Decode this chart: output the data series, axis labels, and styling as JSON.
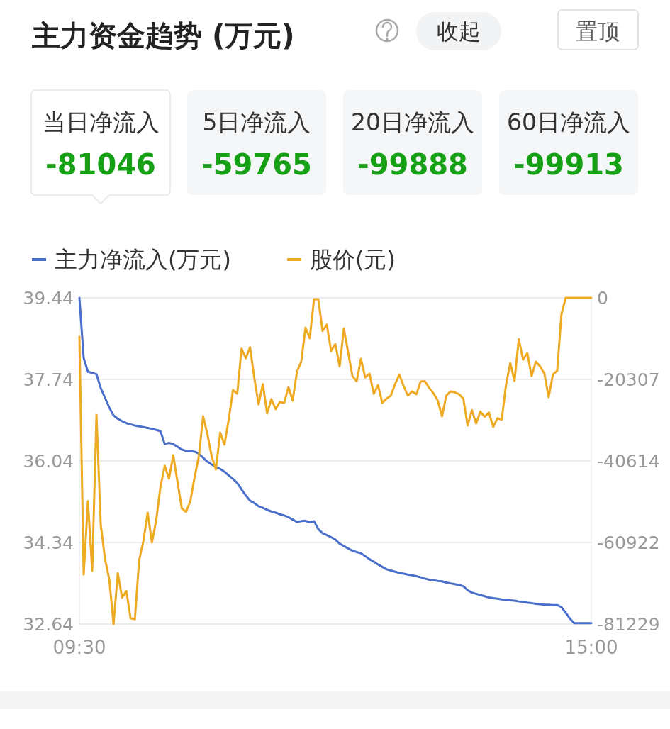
{
  "chart_data": {
    "type": "line",
    "title": "主力资金趋势 (万元)",
    "annotations": [
      "收起",
      "置顶",
      "当日净流入",
      "-81046",
      "5日净流入",
      "-59765",
      "20日净流入",
      "-99888",
      "60日净流入",
      "-99913"
    ],
    "legend": "top left",
    "grid": "y",
    "categories": [
      "09:30",
      null,
      null,
      null,
      null,
      null,
      null,
      null,
      null,
      null,
      null,
      null,
      null,
      null,
      null,
      null,
      null,
      null,
      null,
      null,
      null,
      null,
      null,
      null,
      null,
      null,
      null,
      null,
      null,
      null,
      null,
      null,
      null,
      null,
      null,
      null,
      null,
      null,
      null,
      null,
      null,
      null,
      null,
      null,
      null,
      null,
      null,
      null,
      null,
      null,
      null,
      null,
      null,
      null,
      null,
      null,
      null,
      null,
      null,
      null,
      null,
      null,
      null,
      null,
      null,
      null,
      null,
      null,
      null,
      null,
      null,
      null,
      null,
      null,
      null,
      null,
      null,
      null,
      null,
      null,
      null,
      null,
      null,
      null,
      null,
      null,
      null,
      null,
      null,
      null,
      null,
      null,
      null,
      null,
      null,
      null,
      null,
      null,
      null,
      null,
      null,
      null,
      null,
      null,
      null,
      null,
      null,
      null,
      null,
      null,
      null,
      null,
      null,
      null,
      null,
      null,
      null,
      null,
      null,
      null,
      "15:00"
    ],
    "ylim": [
      32.64,
      39.44
    ],
    "yticks": [
      32.64,
      34.34,
      36.04,
      37.74,
      39.44
    ],
    "y2lim": [
      -81229,
      0
    ],
    "y2ticks": [
      -81229,
      -60922,
      -40614,
      -20307,
      0
    ],
    "series": [
      {
        "name": "主力净流入(万元)",
        "color": "#4a6fcb",
        "axis": "y2",
        "values": [
          0,
          -15000,
          -18400,
          -18700,
          -19000,
          -22500,
          -24900,
          -27300,
          -29300,
          -30100,
          -30700,
          -31200,
          -31500,
          -31800,
          -32000,
          -32200,
          -32400,
          -32600,
          -32900,
          -33200,
          -36400,
          -36100,
          -36400,
          -37100,
          -37800,
          -38100,
          -38200,
          -38300,
          -38800,
          -39800,
          -40800,
          -41500,
          -42100,
          -42600,
          -43300,
          -44200,
          -45100,
          -46100,
          -47700,
          -49200,
          -50500,
          -51100,
          -51900,
          -52300,
          -52800,
          -53200,
          -53500,
          -53900,
          -54200,
          -54600,
          -55200,
          -55800,
          -55600,
          -55500,
          -55900,
          -55600,
          -57600,
          -58600,
          -59100,
          -59600,
          -60200,
          -61200,
          -61800,
          -62400,
          -63000,
          -63300,
          -63600,
          -64300,
          -65100,
          -65700,
          -66400,
          -67000,
          -67600,
          -67900,
          -68200,
          -68500,
          -68700,
          -68900,
          -69100,
          -69300,
          -69600,
          -69900,
          -70200,
          -70300,
          -70500,
          -70600,
          -70900,
          -71100,
          -71300,
          -71500,
          -71800,
          -72800,
          -73400,
          -73700,
          -74000,
          -74300,
          -74600,
          -74800,
          -74900,
          -75100,
          -75200,
          -75300,
          -75400,
          -75600,
          -75700,
          -75900,
          -76000,
          -76200,
          -76300,
          -76400,
          -76400,
          -76500,
          -76500,
          -77000,
          -78400,
          -79900,
          -81000,
          -81000,
          -81000,
          -81000,
          -81000
        ]
      },
      {
        "name": "股价(元)",
        "color": "#eeaa22",
        "values": [
          38.63,
          33.67,
          35.2,
          33.75,
          37,
          34.71,
          34,
          33.57,
          32.64,
          33.7,
          33.19,
          33.33,
          32.76,
          32.74,
          33.97,
          34.37,
          34.96,
          34.34,
          34.8,
          35.5,
          35.94,
          35.67,
          36.16,
          35.6,
          35.05,
          34.98,
          35.2,
          35.7,
          36.14,
          36.97,
          36.6,
          36.14,
          35.86,
          36.63,
          36.38,
          36.9,
          37.52,
          37.44,
          38.38,
          38.18,
          38.41,
          37.77,
          37.22,
          37.64,
          37.03,
          37.33,
          37.12,
          37.27,
          37.25,
          37.58,
          37.3,
          37.9,
          38.11,
          38.82,
          38.6,
          39.41,
          39.41,
          38.75,
          38.88,
          38.33,
          38.48,
          38.01,
          38.8,
          38.3,
          37.81,
          37.7,
          38.17,
          37.78,
          37.86,
          37.44,
          37.62,
          37.25,
          37.34,
          37.4,
          37.64,
          37.84,
          37.6,
          37.4,
          37.49,
          37.43,
          37.7,
          37.7,
          37.56,
          37.45,
          37.3,
          36.97,
          37.4,
          37.49,
          37.47,
          37.43,
          37.34,
          36.78,
          37.1,
          36.82,
          37.07,
          36.96,
          37.05,
          36.75,
          36.93,
          36.9,
          37.62,
          38.08,
          37.71,
          38.58,
          38.15,
          38.29,
          37.81,
          38.11,
          38.01,
          37.86,
          37.37,
          37.84,
          37.92,
          39.1,
          39.44,
          39.44,
          39.44,
          39.44,
          39.44,
          39.44,
          39.44
        ]
      }
    ]
  }
}
